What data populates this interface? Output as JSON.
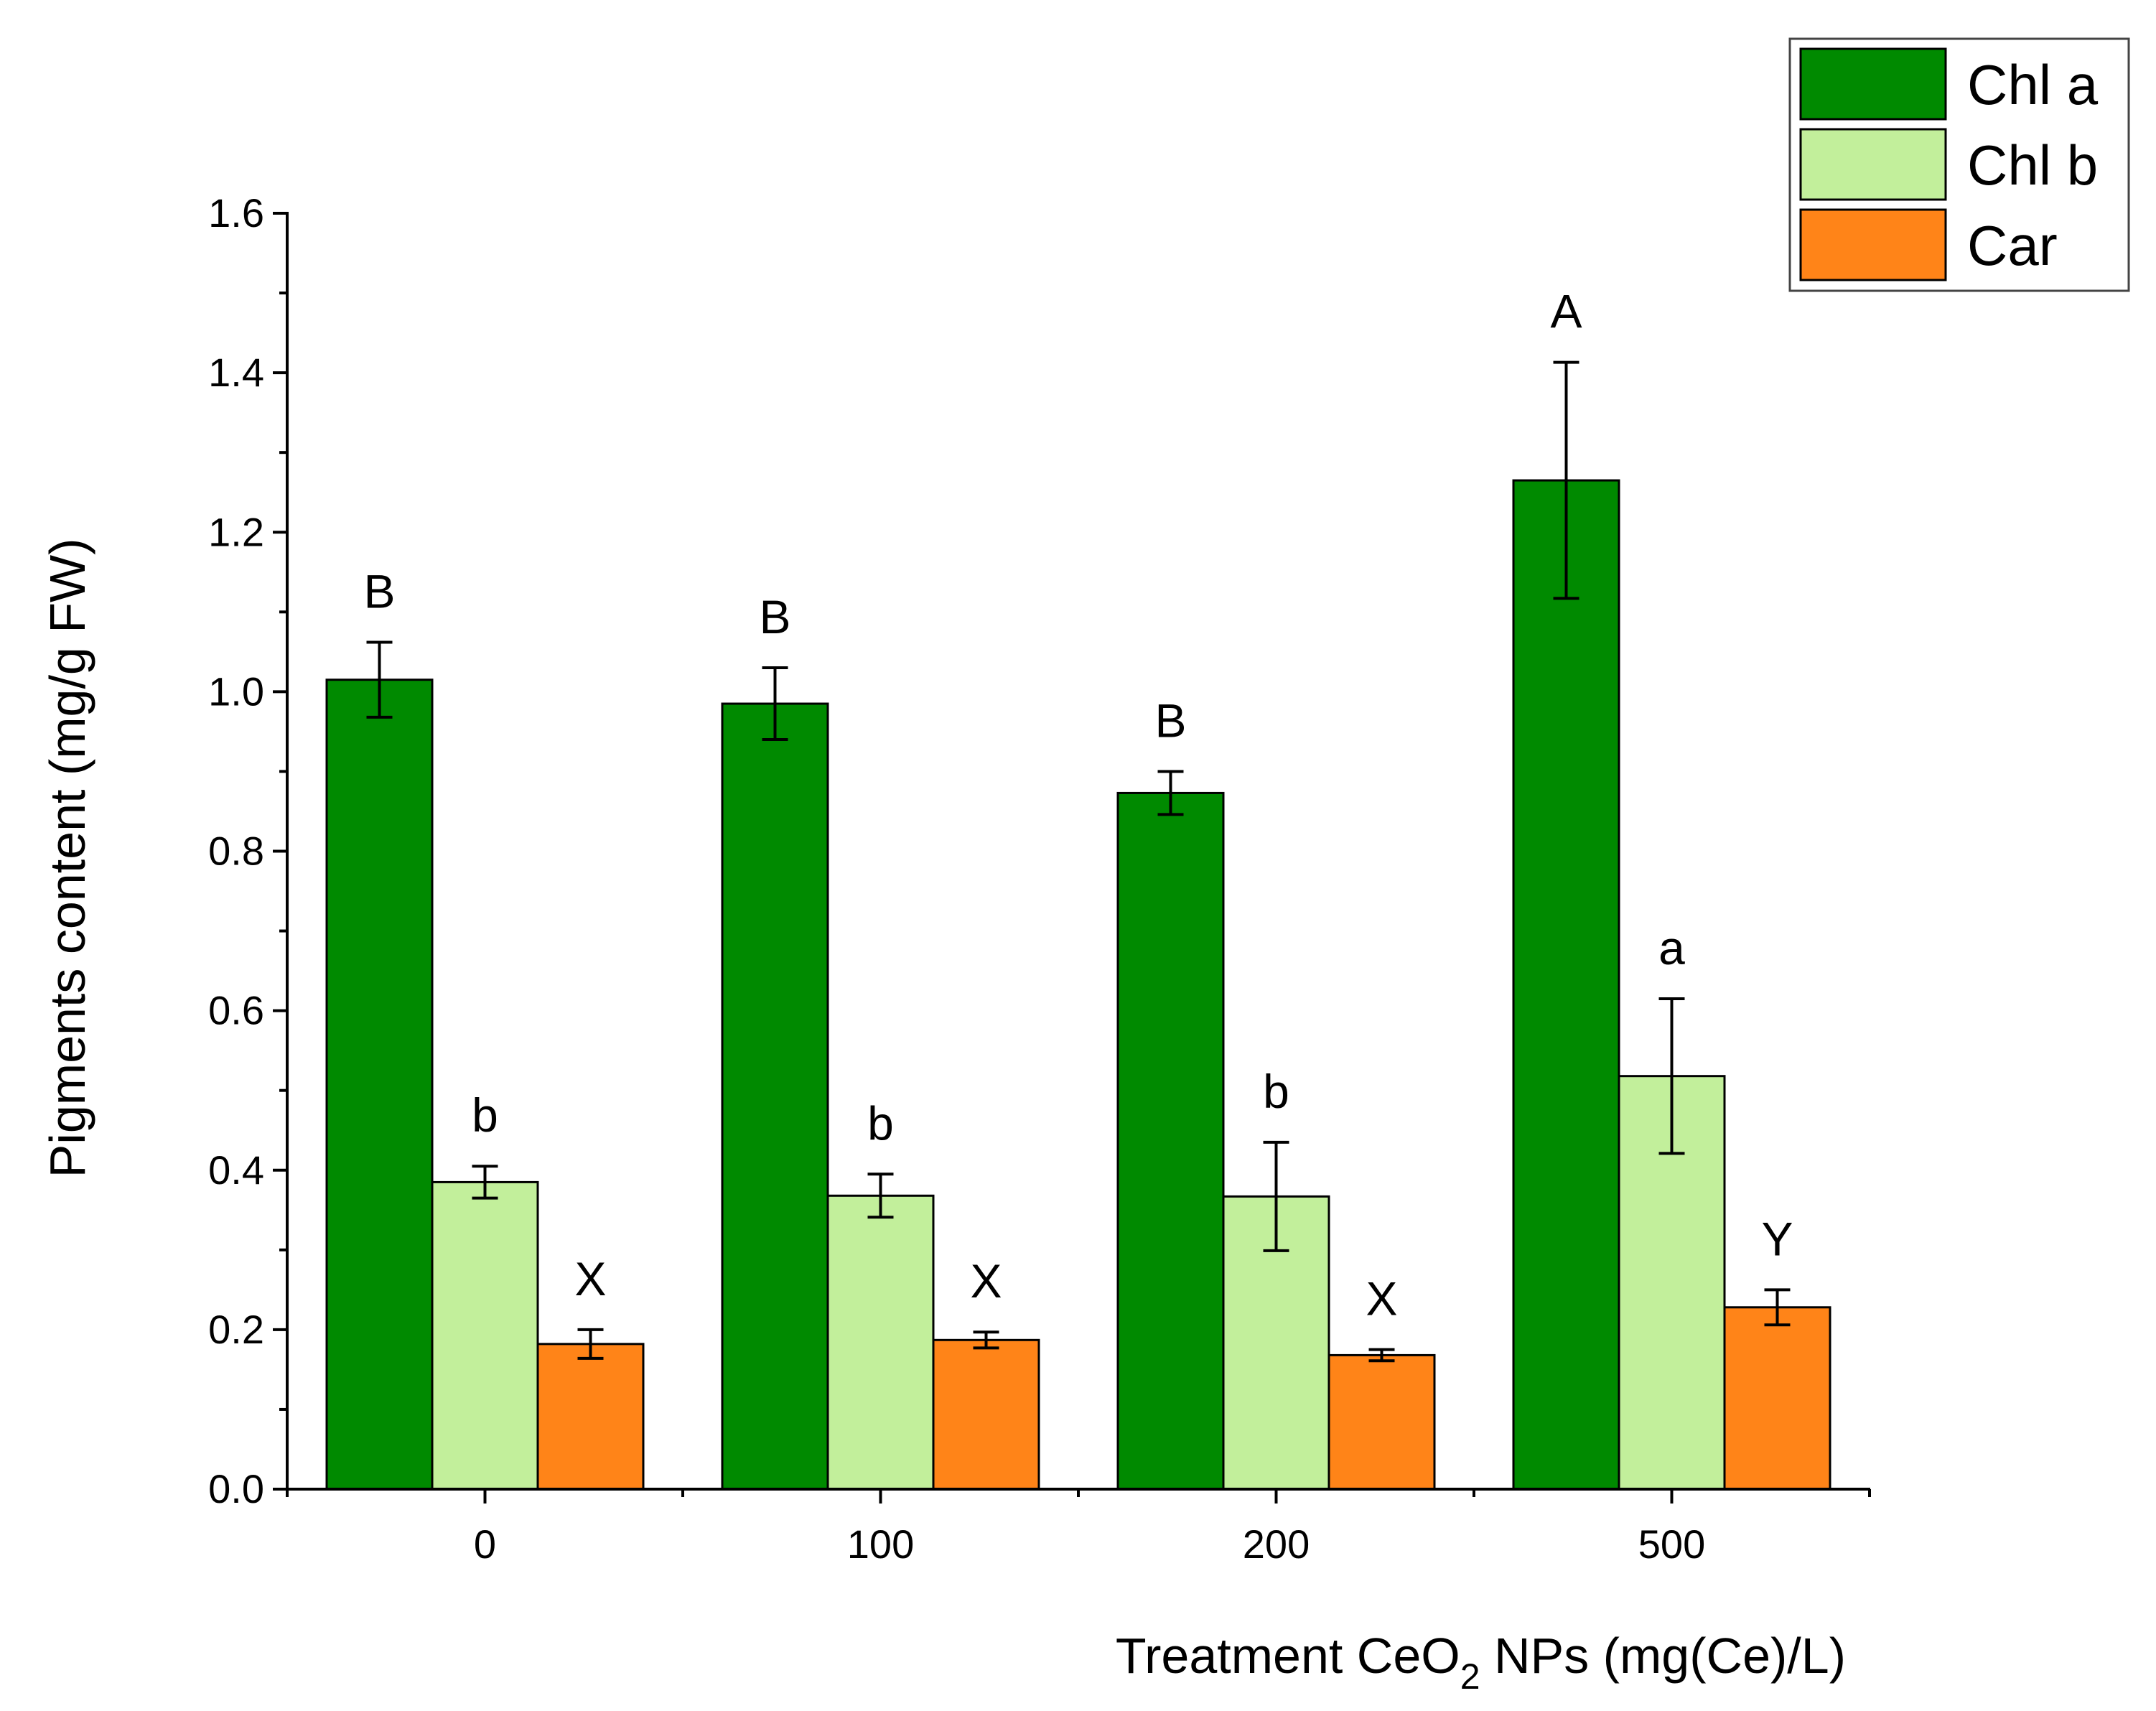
{
  "chart_data": {
    "type": "bar",
    "categories": [
      "0",
      "100",
      "200",
      "500"
    ],
    "series": [
      {
        "name": "Chl a",
        "color": "#008a00",
        "values": [
          1.015,
          0.985,
          0.873,
          1.265
        ],
        "errors": [
          0.047,
          0.045,
          0.027,
          0.148
        ],
        "letters": [
          "B",
          "B",
          "B",
          "A"
        ]
      },
      {
        "name": "Chl b",
        "color": "#c2ef9b",
        "values": [
          0.385,
          0.368,
          0.367,
          0.518
        ],
        "errors": [
          0.02,
          0.027,
          0.068,
          0.097
        ],
        "letters": [
          "b",
          "b",
          "b",
          "a"
        ]
      },
      {
        "name": "Car",
        "color": "#ff8418",
        "values": [
          0.182,
          0.187,
          0.168,
          0.228
        ],
        "errors": [
          0.018,
          0.01,
          0.007,
          0.022
        ],
        "letters": [
          "X",
          "X",
          "X",
          "Y"
        ]
      }
    ],
    "xlabel": {
      "prefix": "Treatment CeO",
      "subscript": "2",
      "suffix": " NPs (mg(Ce)/L)"
    },
    "ylabel": "Pigments content (mg/g FW)",
    "ylim": [
      0,
      1.6
    ],
    "yticks": [
      "0.0",
      "0.2",
      "0.4",
      "0.6",
      "0.8",
      "1.0",
      "1.2",
      "1.4",
      "1.6"
    ],
    "legend_position": "top-right",
    "grid": false
  }
}
